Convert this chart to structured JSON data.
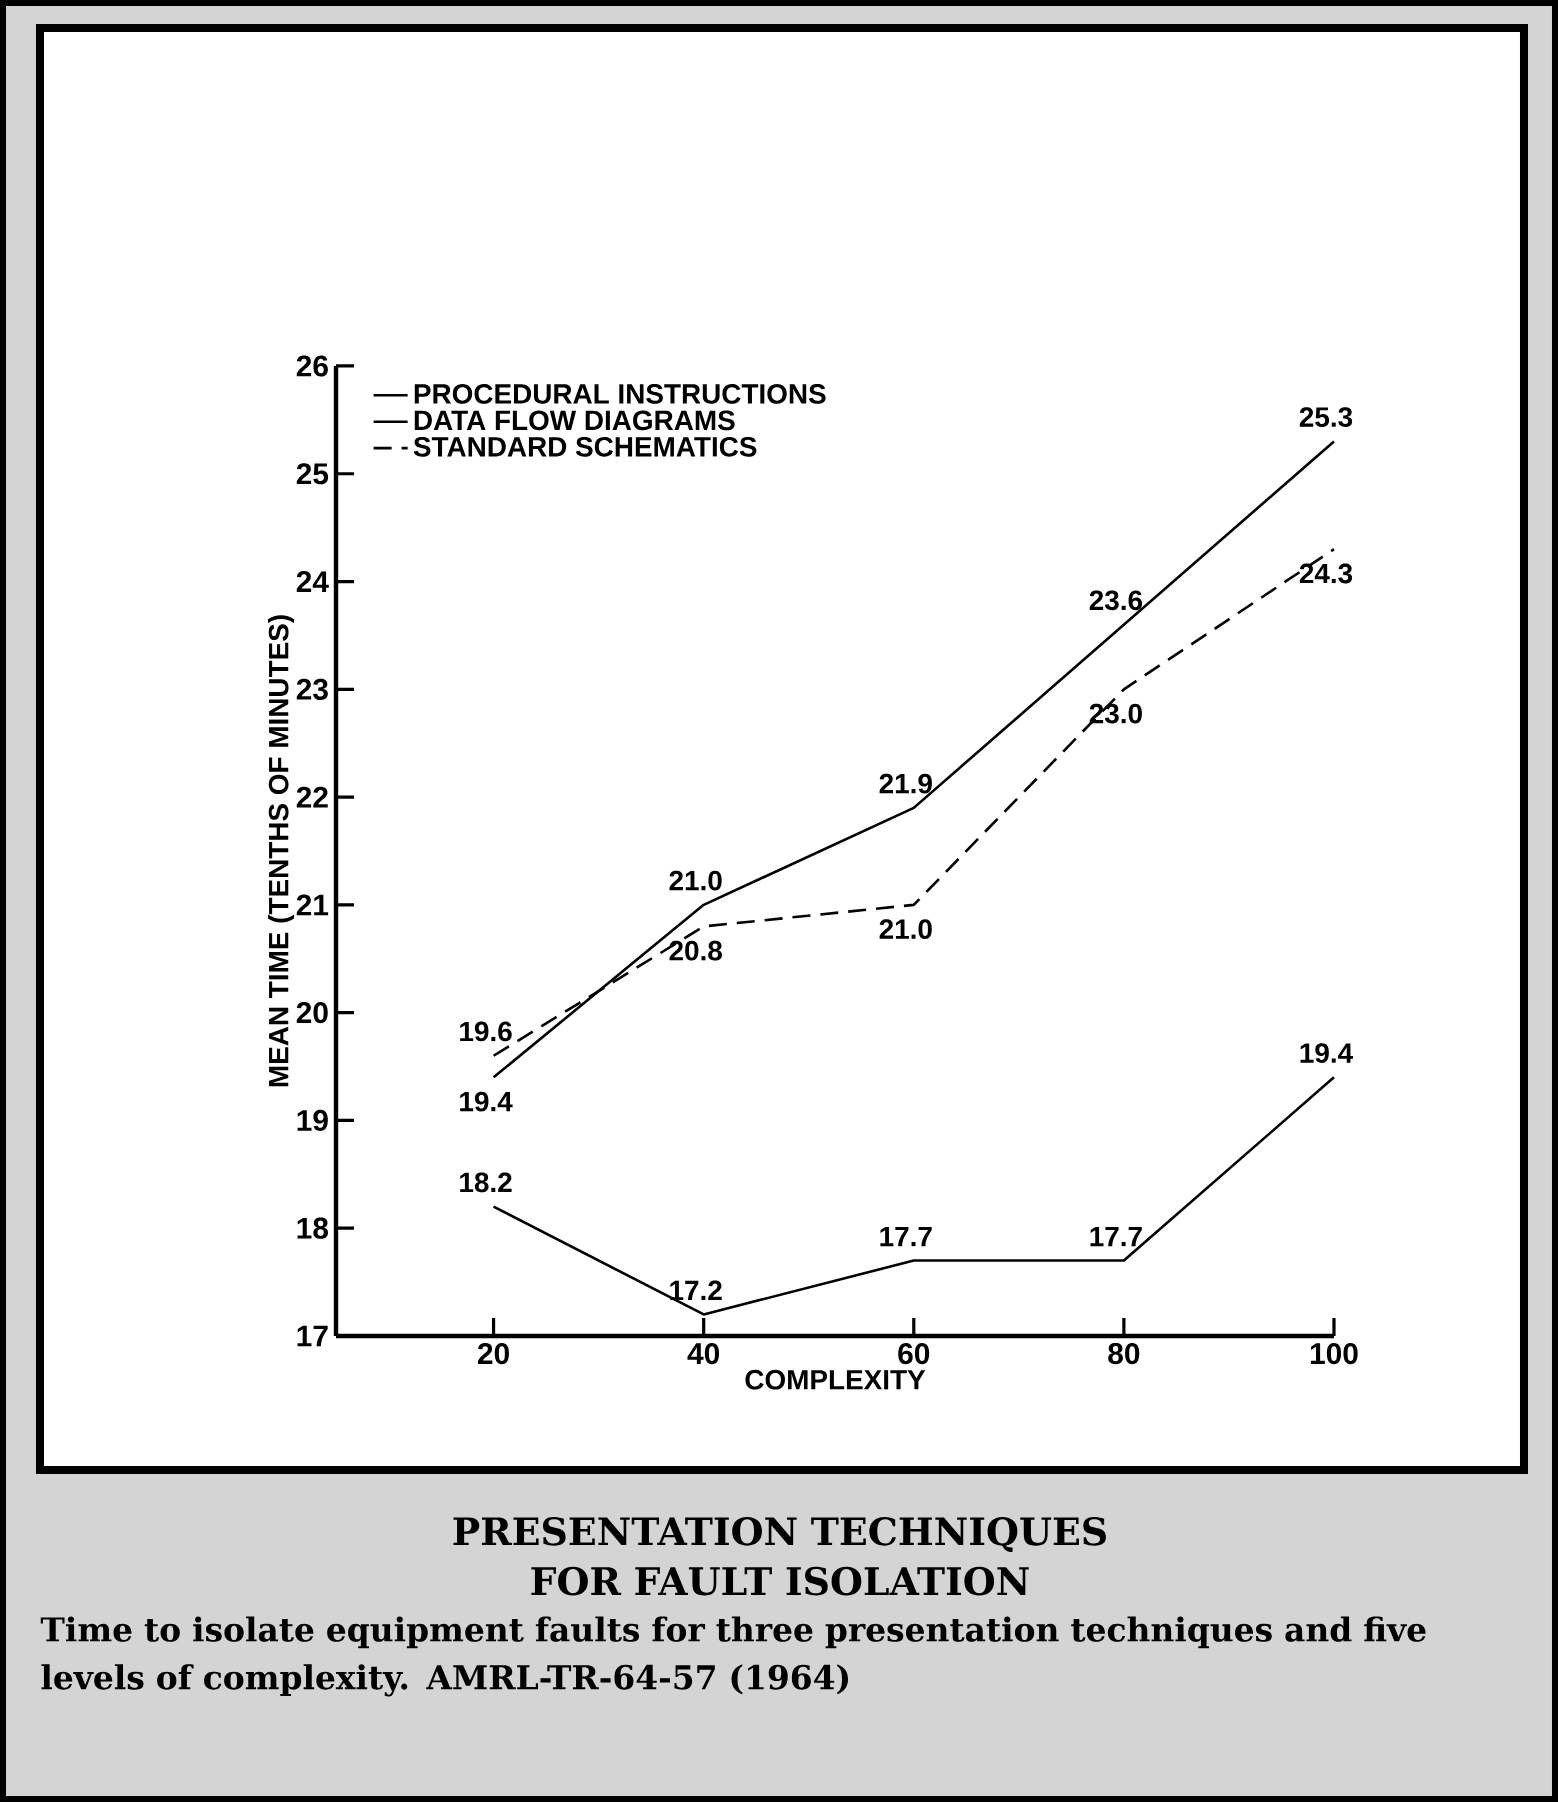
{
  "chart_data": {
    "type": "line",
    "title": "PRESENTATION TECHNIQUES FOR FAULT ISOLATION",
    "xlabel": "COMPLEXITY",
    "ylabel": "MEAN TIME (TENTHS OF MINUTES)",
    "annotations": [
      "Time to isolate equipment faults for three presentation techniques and five levels of complexity. AMRL-TR-64-57 (1964)"
    ],
    "x": [
      20,
      40,
      60,
      80,
      100
    ],
    "xlim": [
      5,
      100
    ],
    "xticks": [
      20,
      40,
      60,
      80,
      100
    ],
    "ylim": [
      17,
      26
    ],
    "yticks": [
      17,
      18,
      19,
      20,
      21,
      22,
      23,
      24,
      25,
      26
    ],
    "legend": "top left",
    "marker": "none",
    "series": [
      {
        "name": "PROCEDURAL INSTRUCTIONS",
        "color": "#000000",
        "line_style": "solid",
        "values": [
          18.2,
          17.2,
          17.7,
          17.7,
          19.4
        ],
        "value_labels": [
          "18.2",
          "17.2",
          "17.7",
          "17.7",
          "19.4"
        ]
      },
      {
        "name": "DATA FLOW DIAGRAMS",
        "color": "#000000",
        "line_style": "solid",
        "values": [
          19.4,
          21.0,
          21.9,
          23.6,
          25.3
        ],
        "value_labels": [
          "19.4",
          "21.0",
          "21.9",
          "23.6",
          "25.3"
        ]
      },
      {
        "name": "STANDARD SCHEMATICS",
        "color": "#000000",
        "line_style": "dashed",
        "values": [
          19.6,
          20.8,
          21.0,
          23.0,
          24.3
        ],
        "value_labels": [
          "19.6",
          "20.8",
          "21.0",
          "23.0",
          "24.3"
        ]
      }
    ]
  }
}
